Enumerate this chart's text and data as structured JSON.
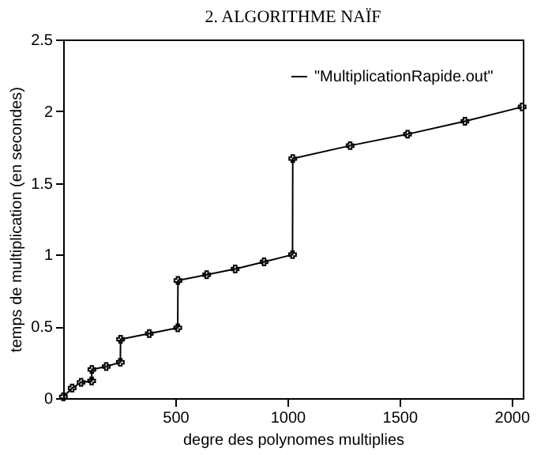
{
  "chart_data": {
    "type": "line",
    "title": "2. ALGORITHME NAÏF",
    "xlabel": "degre des polynomes multiplies",
    "ylabel": "temps de multiplication (en secondes)",
    "x": [
      1,
      40,
      80,
      127,
      128,
      192,
      255,
      256,
      384,
      511,
      512,
      640,
      767,
      896,
      1023,
      1024,
      1280,
      1536,
      1792,
      2047
    ],
    "series": [
      {
        "name": "\"MultiplicationRapide.out\"",
        "color": "#000000",
        "values": [
          0.01,
          0.07,
          0.11,
          0.12,
          0.2,
          0.22,
          0.25,
          0.41,
          0.45,
          0.49,
          0.82,
          0.86,
          0.9,
          0.95,
          1.0,
          1.67,
          1.76,
          1.84,
          1.93,
          2.03
        ]
      }
    ],
    "xlim": [
      0,
      2050
    ],
    "xticks": [
      500,
      1000,
      1500,
      2000
    ],
    "ylim": [
      0,
      2.5
    ],
    "yticks": [
      0,
      0.5,
      1,
      1.5,
      2,
      2.5
    ],
    "grid": false,
    "legend": "top right",
    "marker": "cross",
    "line_style": "solid"
  }
}
